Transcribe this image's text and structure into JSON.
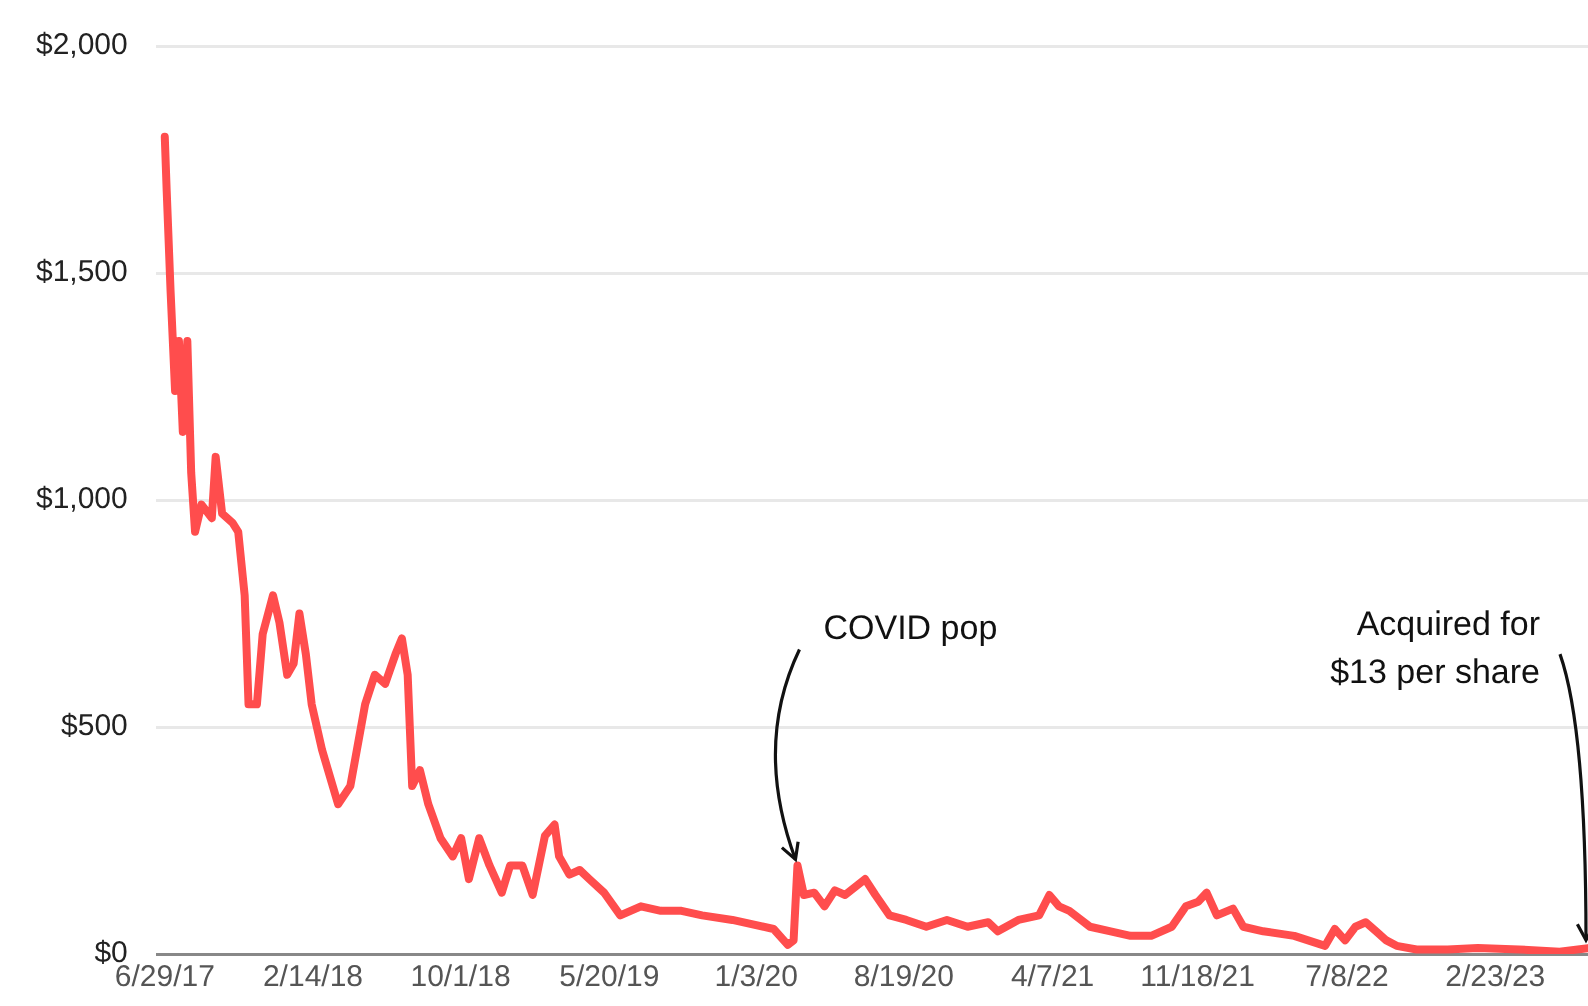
{
  "chart_data": {
    "type": "line",
    "x": [
      "2017-06-29",
      "2017-07-02",
      "2017-07-08",
      "2017-07-15",
      "2017-07-21",
      "2017-07-27",
      "2017-08-03",
      "2017-08-09",
      "2017-08-15",
      "2017-08-25",
      "2017-09-10",
      "2017-09-16",
      "2017-09-26",
      "2017-10-12",
      "2017-10-21",
      "2017-10-31",
      "2017-11-06",
      "2017-11-19",
      "2017-11-28",
      "2017-12-14",
      "2017-12-24",
      "2018-01-05",
      "2018-01-15",
      "2018-01-24",
      "2018-02-03",
      "2018-02-12",
      "2018-02-28",
      "2018-03-25",
      "2018-04-13",
      "2018-05-06",
      "2018-05-21",
      "2018-06-06",
      "2018-06-22",
      "2018-07-02",
      "2018-07-11",
      "2018-07-18",
      "2018-07-30",
      "2018-08-12",
      "2018-08-31",
      "2018-09-19",
      "2018-10-02",
      "2018-10-14",
      "2018-10-30",
      "2018-11-15",
      "2018-12-04",
      "2018-12-17",
      "2019-01-05",
      "2019-01-21",
      "2019-02-09",
      "2019-02-24",
      "2019-03-03",
      "2019-03-19",
      "2019-04-04",
      "2019-04-19",
      "2019-05-12",
      "2019-06-06",
      "2019-07-08",
      "2019-08-08",
      "2019-09-09",
      "2019-10-11",
      "2019-11-27",
      "2020-01-30",
      "2020-02-21",
      "2020-03-01",
      "2020-03-07",
      "2020-03-17",
      "2020-04-02",
      "2020-04-18",
      "2020-05-04",
      "2020-05-20",
      "2020-06-20",
      "2020-07-06",
      "2020-07-28",
      "2020-08-23",
      "2020-09-23",
      "2020-10-25",
      "2020-11-26",
      "2020-12-28",
      "2021-01-12",
      "2021-02-13",
      "2021-03-17",
      "2021-04-02",
      "2021-04-17",
      "2021-05-03",
      "2021-06-04",
      "2021-07-06",
      "2021-08-06",
      "2021-09-07",
      "2021-10-09",
      "2021-10-31",
      "2021-11-19",
      "2021-12-02",
      "2021-12-18",
      "2022-01-12",
      "2022-01-28",
      "2022-02-28",
      "2022-04-17",
      "2022-06-04",
      "2022-06-19",
      "2022-07-05",
      "2022-07-21",
      "2022-08-06",
      "2022-08-22",
      "2022-09-07",
      "2022-09-23",
      "2022-10-24",
      "2022-12-11",
      "2023-01-27",
      "2023-04-01",
      "2023-06-03",
      "2023-07-17"
    ],
    "series": [
      {
        "color": "#ff4d4d",
        "values": [
          1800,
          1680,
          1460,
          1240,
          1350,
          1150,
          1350,
          1060,
          930,
          990,
          960,
          1095,
          970,
          950,
          930,
          790,
          550,
          550,
          705,
          790,
          730,
          615,
          640,
          750,
          660,
          550,
          450,
          330,
          370,
          550,
          615,
          595,
          660,
          695,
          615,
          370,
          405,
          330,
          255,
          215,
          255,
          165,
          255,
          195,
          135,
          195,
          195,
          130,
          260,
          285,
          215,
          175,
          185,
          165,
          135,
          85,
          105,
          95,
          95,
          85,
          75,
          55,
          20,
          30,
          195,
          130,
          135,
          105,
          140,
          130,
          165,
          130,
          85,
          75,
          60,
          75,
          60,
          70,
          50,
          75,
          85,
          130,
          105,
          95,
          60,
          50,
          40,
          40,
          60,
          105,
          115,
          135,
          85,
          100,
          60,
          50,
          40,
          18,
          55,
          30,
          60,
          70,
          50,
          30,
          18,
          10,
          10,
          13,
          10,
          5,
          13
        ]
      }
    ],
    "xlim": [
      "2017-06-15",
      "2023-07-17"
    ],
    "xticks": [
      {
        "value": "2017-06-29",
        "label": "6/29/17"
      },
      {
        "value": "2018-02-14",
        "label": "2/14/18"
      },
      {
        "value": "2018-10-01",
        "label": "10/1/18"
      },
      {
        "value": "2019-05-20",
        "label": "5/20/19"
      },
      {
        "value": "2020-01-03",
        "label": "1/3/20"
      },
      {
        "value": "2020-08-19",
        "label": "8/19/20"
      },
      {
        "value": "2021-04-07",
        "label": "4/7/21"
      },
      {
        "value": "2021-11-18",
        "label": "11/18/21"
      },
      {
        "value": "2022-07-08",
        "label": "7/8/22"
      },
      {
        "value": "2023-02-23",
        "label": "2/23/23"
      }
    ],
    "ylim": [
      0,
      2000
    ],
    "yticks": [
      {
        "value": 0,
        "label": "$0"
      },
      {
        "value": 500,
        "label": "$500"
      },
      {
        "value": 1000,
        "label": "$1,000"
      },
      {
        "value": 1500,
        "label": "$1,500"
      },
      {
        "value": 2000,
        "label": "$2,000"
      }
    ],
    "grid": "y",
    "legend": false,
    "marker": "none",
    "line_style": "solid",
    "annotations": [
      {
        "text": "COVID pop",
        "x": "2020-03-07",
        "y": 195
      },
      {
        "text": "Acquired for\n$13 per share",
        "x": "2023-07-17",
        "y": 13
      }
    ]
  }
}
